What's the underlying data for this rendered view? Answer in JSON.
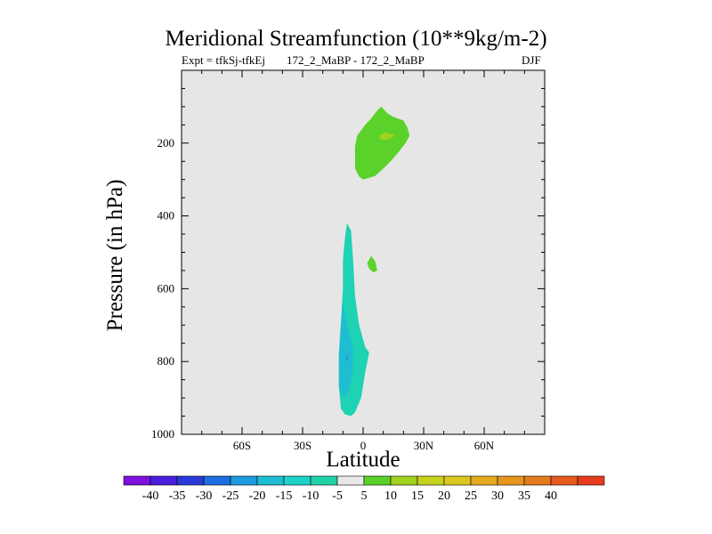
{
  "chart_data": {
    "type": "contour",
    "title": "Meridional Streamfunction (10**9kg/m-2)",
    "subtitle_left": "Expt = tfkSj-tfkEj",
    "subtitle_center": "172_2_MaBP - 172_2_MaBP",
    "subtitle_right": "DJF",
    "xlabel": "Latitude",
    "ylabel": "Pressure (in hPa)",
    "xlim": [
      -90,
      90
    ],
    "ylim": [
      1000,
      0
    ],
    "x_ticks": [
      {
        "value": -60,
        "label": "60S"
      },
      {
        "value": -30,
        "label": "30S"
      },
      {
        "value": 0,
        "label": "0"
      },
      {
        "value": 30,
        "label": "30N"
      },
      {
        "value": 60,
        "label": "60N"
      }
    ],
    "y_ticks": [
      {
        "value": 200,
        "label": "200"
      },
      {
        "value": 400,
        "label": "400"
      },
      {
        "value": 600,
        "label": "600"
      },
      {
        "value": 800,
        "label": "800"
      },
      {
        "value": 1000,
        "label": "1000"
      }
    ],
    "background_color": "#e6e6e6",
    "regions": [
      {
        "name": "upper-positive-cell",
        "value": 5,
        "color": "#5ad22a",
        "points": [
          [
            -3,
            180
          ],
          [
            1,
            150
          ],
          [
            4,
            132
          ],
          [
            7,
            110
          ],
          [
            9,
            100
          ],
          [
            12,
            118
          ],
          [
            15,
            128
          ],
          [
            20,
            138
          ],
          [
            22,
            158
          ],
          [
            23,
            180
          ],
          [
            21,
            200
          ],
          [
            18,
            222
          ],
          [
            14,
            248
          ],
          [
            10,
            270
          ],
          [
            6,
            290
          ],
          [
            3,
            295
          ],
          [
            0,
            300
          ],
          [
            -2,
            292
          ],
          [
            -4,
            270
          ],
          [
            -4,
            240
          ],
          [
            -4,
            210
          ]
        ]
      },
      {
        "name": "upper-core",
        "value": 10,
        "color": "#a0d21e",
        "points": [
          [
            8,
            180
          ],
          [
            11,
            170
          ],
          [
            14,
            175
          ],
          [
            16,
            178
          ],
          [
            14,
            186
          ],
          [
            11,
            192
          ],
          [
            8,
            188
          ]
        ]
      },
      {
        "name": "lower-negative-cell",
        "value": -10,
        "color": "#1ed2b4",
        "points": [
          [
            -8,
            420
          ],
          [
            -6,
            440
          ],
          [
            -5,
            520
          ],
          [
            -4,
            620
          ],
          [
            -2,
            700
          ],
          [
            1,
            760
          ],
          [
            3,
            775
          ],
          [
            1,
            830
          ],
          [
            -1,
            900
          ],
          [
            -4,
            940
          ],
          [
            -6,
            950
          ],
          [
            -9,
            945
          ],
          [
            -11,
            930
          ],
          [
            -12,
            870
          ],
          [
            -12,
            780
          ],
          [
            -11,
            690
          ],
          [
            -10,
            600
          ],
          [
            -10,
            520
          ],
          [
            -9,
            460
          ]
        ]
      },
      {
        "name": "lower-core",
        "value": -15,
        "color": "#1ebed2",
        "points": [
          [
            -10,
            640
          ],
          [
            -8,
            700
          ],
          [
            -5,
            760
          ],
          [
            -5,
            820
          ],
          [
            -7,
            880
          ],
          [
            -10,
            900
          ],
          [
            -12,
            870
          ],
          [
            -12,
            780
          ],
          [
            -11,
            700
          ]
        ]
      },
      {
        "name": "lower-min",
        "value": -20,
        "color": "#28a0dc",
        "points": [
          [
            -8,
            780
          ],
          [
            -7,
            790
          ],
          [
            -8,
            800
          ],
          [
            -9,
            790
          ]
        ]
      },
      {
        "name": "small-positive-blob",
        "value": 5,
        "color": "#5ad22a",
        "points": [
          [
            2,
            530
          ],
          [
            4,
            510
          ],
          [
            6,
            525
          ],
          [
            7,
            550
          ],
          [
            5,
            555
          ],
          [
            3,
            545
          ]
        ]
      }
    ],
    "colorbar": {
      "colors": [
        "#7d10dc",
        "#4a1edc",
        "#2a3ad6",
        "#1e6ee0",
        "#1e9ade",
        "#1ebed2",
        "#1ed2c8",
        "#1ed2a6",
        "#e8e8e8",
        "#5ad22a",
        "#a0d21e",
        "#c8d21e",
        "#dcc81e",
        "#e6aa1e",
        "#e6961e",
        "#e67a1e",
        "#e65a1e",
        "#e63c1e"
      ],
      "labels": [
        "-40",
        "-35",
        "-30",
        "-25",
        "-20",
        "-15",
        "-10",
        "-5",
        "5",
        "10",
        "15",
        "20",
        "25",
        "30",
        "35",
        "40"
      ]
    }
  }
}
